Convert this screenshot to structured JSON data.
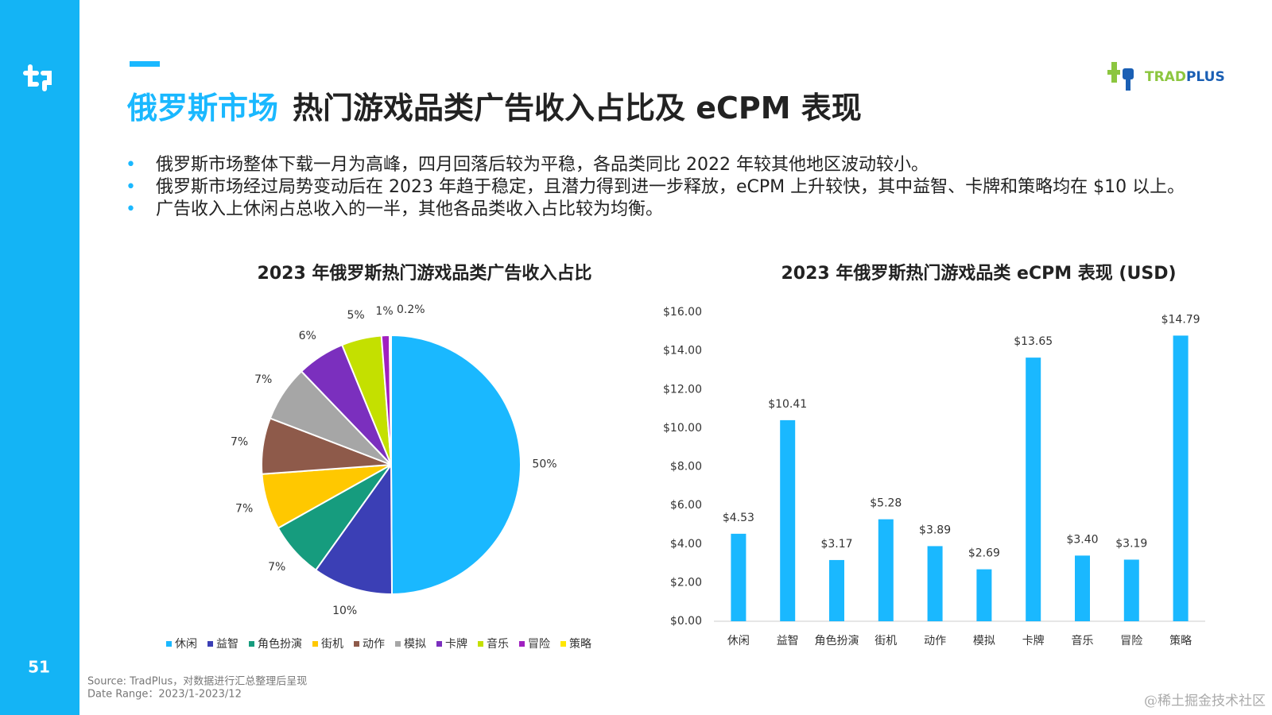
{
  "sidebar": {
    "page_number": "51"
  },
  "header": {
    "title_highlight": "俄罗斯市场",
    "title": "热门游戏品类广告收入占比及 eCPM 表现"
  },
  "logo": {
    "part1": "TRAD",
    "part2": "PLUS"
  },
  "bullets": [
    "俄罗斯市场整体下载一月为高峰，四月回落后较为平稳，各品类同比 2022 年较其他地区波动较小。",
    "俄罗斯市场经过局势变动后在 2023 年趋于稳定，且潜力得到进一步释放，eCPM 上升较快，其中益智、卡牌和策略均在 $10 以上。",
    "广告收入上休闲占总收入的一半，其他各品类收入占比较为均衡。"
  ],
  "footer": {
    "source": "Source: TradPlus，对数据进行汇总整理后呈现",
    "date_range": "Date Range：2023/1-2023/12"
  },
  "watermark": "@稀土掘金技术社区",
  "chart_data": [
    {
      "type": "pie",
      "title": "2023 年俄罗斯热门游戏品类广告收入占比",
      "categories": [
        "休闲",
        "益智",
        "角色扮演",
        "街机",
        "动作",
        "模拟",
        "卡牌",
        "音乐",
        "冒险",
        "策略"
      ],
      "values": [
        50,
        10,
        7,
        7,
        7,
        7,
        6,
        5,
        1,
        0.2
      ],
      "value_labels": [
        "50%",
        "10%",
        "7%",
        "7%",
        "7%",
        "7%",
        "6%",
        "5%",
        "1%",
        "0.2%"
      ],
      "colors": [
        "#1ab8ff",
        "#3b3fb5",
        "#169c7e",
        "#ffc800",
        "#8e5a4a",
        "#a6a6a6",
        "#7b2fbe",
        "#c4e000",
        "#a020c0",
        "#ffe600"
      ],
      "legend": "bottom"
    },
    {
      "type": "bar",
      "title": "2023 年俄罗斯热门游戏品类 eCPM 表现 (USD)",
      "categories": [
        "休闲",
        "益智",
        "角色扮演",
        "街机",
        "动作",
        "模拟",
        "卡牌",
        "音乐",
        "冒险",
        "策略"
      ],
      "values": [
        4.53,
        10.41,
        3.17,
        5.28,
        3.89,
        2.69,
        13.65,
        3.4,
        3.19,
        14.79
      ],
      "value_labels": [
        "$4.53",
        "$10.41",
        "$3.17",
        "$5.28",
        "$3.89",
        "$2.69",
        "$13.65",
        "$3.40",
        "$3.19",
        "$14.79"
      ],
      "color": "#1ab8ff",
      "ylim": [
        0,
        16
      ],
      "yticks": [
        {
          "value": 0,
          "label": "$0.00"
        },
        {
          "value": 2,
          "label": "$2.00"
        },
        {
          "value": 4,
          "label": "$4.00"
        },
        {
          "value": 6,
          "label": "$6.00"
        },
        {
          "value": 8,
          "label": "$8.00"
        },
        {
          "value": 10,
          "label": "$10.00"
        },
        {
          "value": 12,
          "label": "$12.00"
        },
        {
          "value": 14,
          "label": "$14.00"
        },
        {
          "value": 16,
          "label": "$16.00"
        }
      ],
      "grid": false
    }
  ]
}
